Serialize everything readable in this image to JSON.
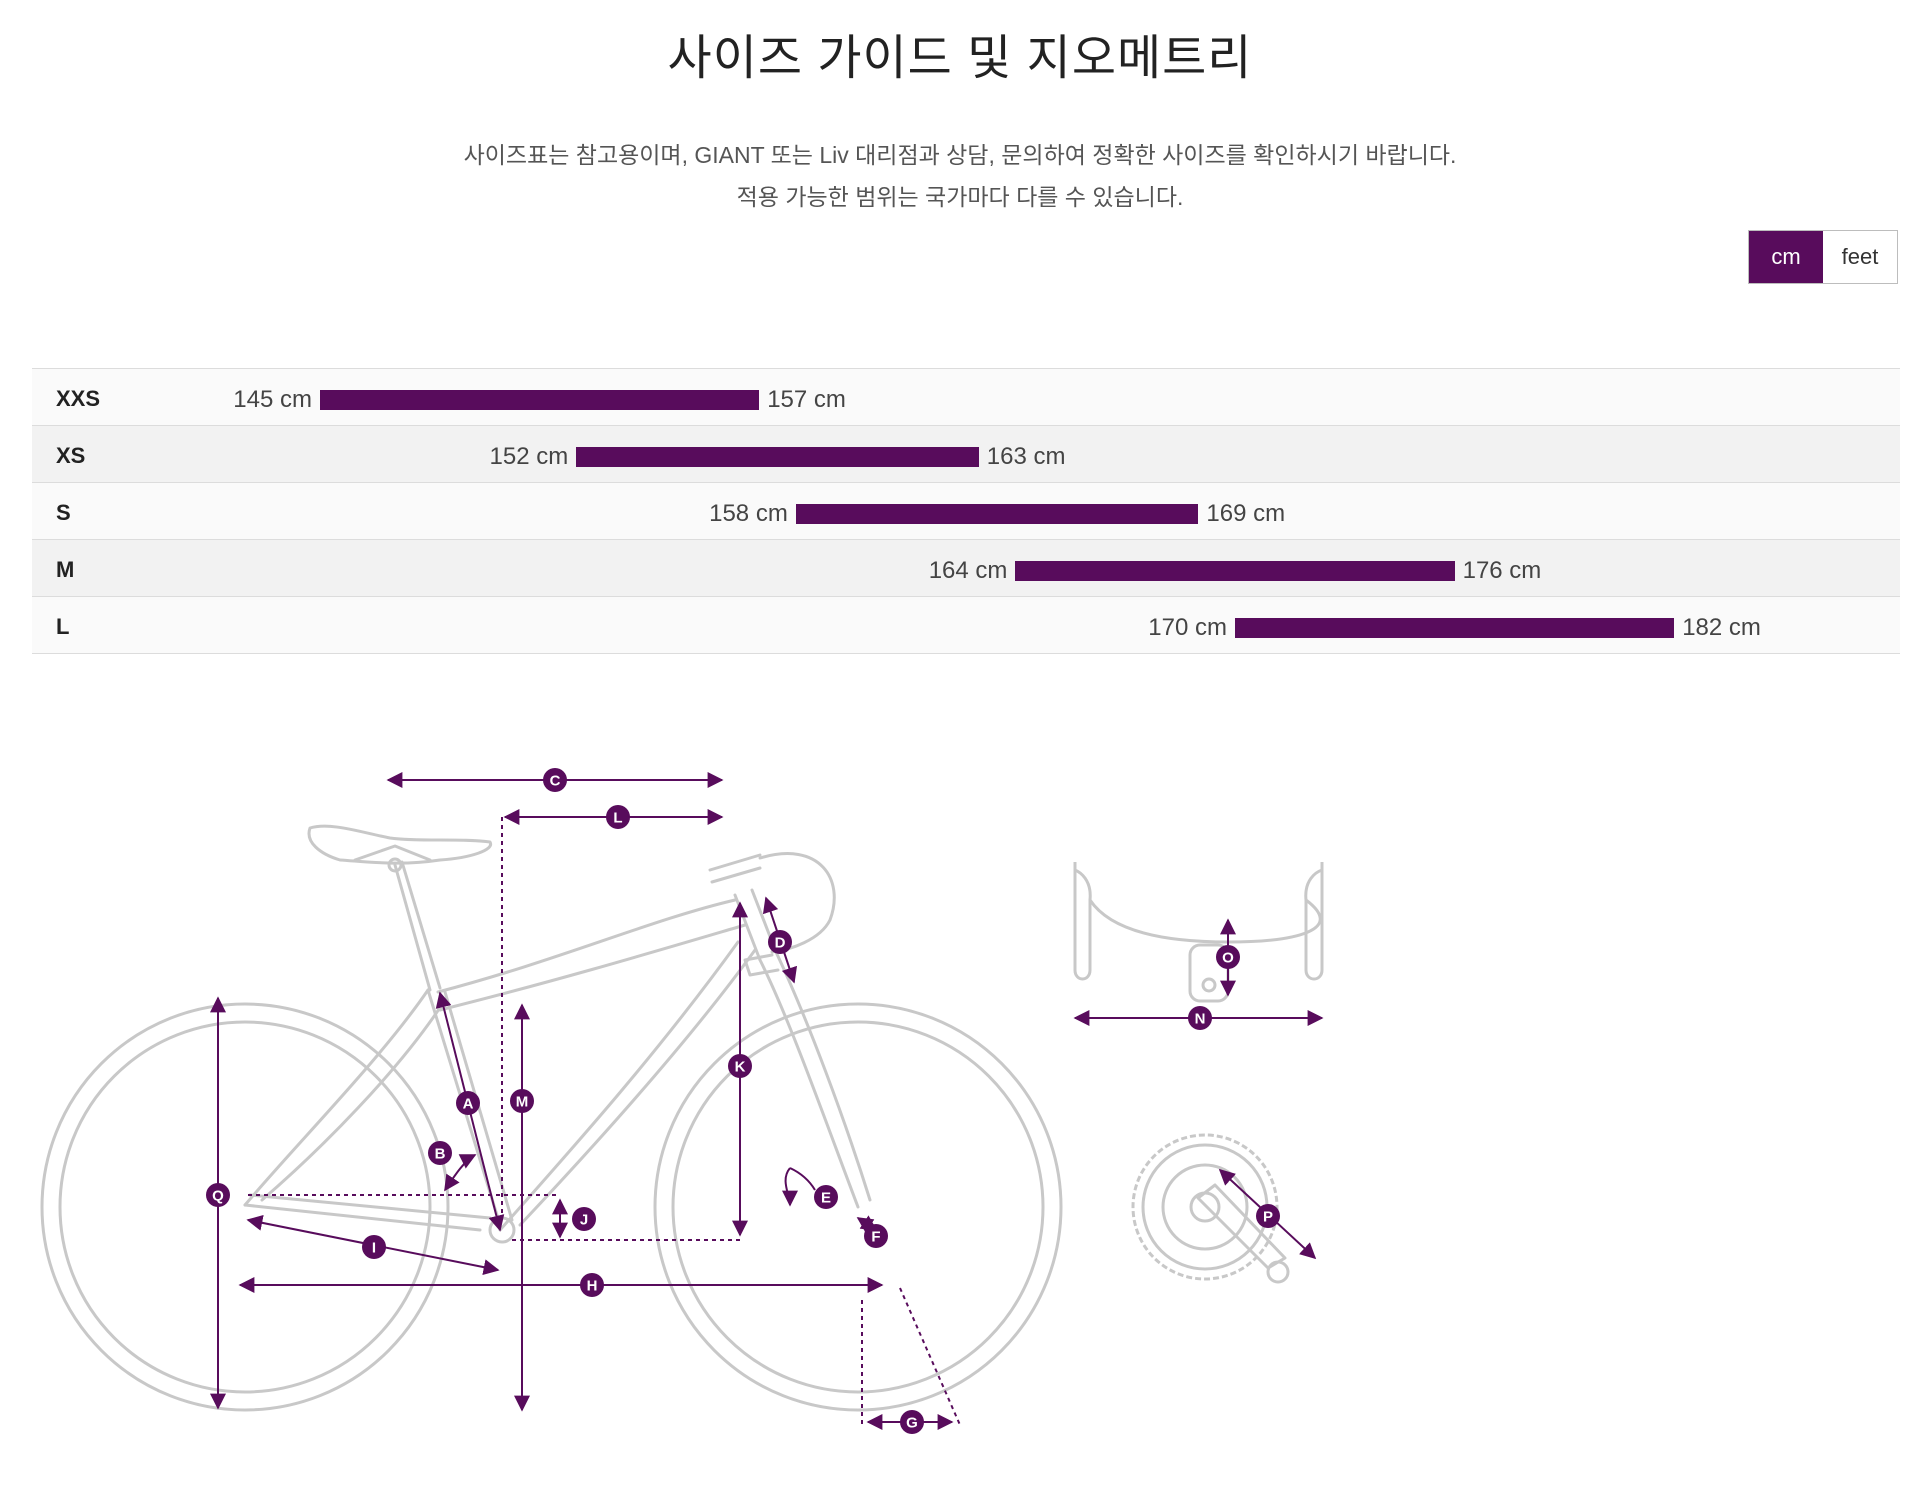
{
  "header": {
    "title": "사이즈 가이드 및 지오메트리",
    "description": [
      "사이즈표는 참고용이며, GIANT 또는 Liv 대리점과 상담, 문의하여 정확한 사이즈를 확인하시기 바랍니다.",
      "적용 가능한 범위는 국가마다 다를 수 있습니다."
    ]
  },
  "unit_toggle": {
    "options": [
      "cm",
      "feet"
    ],
    "selected": "cm"
  },
  "size_chart": {
    "unit": "cm",
    "rows": [
      {
        "size": "XXS",
        "min": 145,
        "max": 157,
        "min_label": "145 cm",
        "max_label": "157 cm"
      },
      {
        "size": "XS",
        "min": 152,
        "max": 163,
        "min_label": "152 cm",
        "max_label": "163 cm"
      },
      {
        "size": "S",
        "min": 158,
        "max": 169,
        "min_label": "158 cm",
        "max_label": "169 cm"
      },
      {
        "size": "M",
        "min": 164,
        "max": 176,
        "min_label": "164 cm",
        "max_label": "176 cm"
      },
      {
        "size": "L",
        "min": 170,
        "max": 182,
        "min_label": "170 cm",
        "max_label": "182 cm"
      }
    ]
  },
  "geometry_markers": [
    "A",
    "B",
    "C",
    "D",
    "E",
    "F",
    "G",
    "H",
    "I",
    "J",
    "K",
    "L",
    "M",
    "N",
    "O",
    "P",
    "Q"
  ],
  "colors": {
    "accent": "#580c5c",
    "bike_line": "#c8c8c8",
    "row_light": "#fafafa",
    "row_dark": "#f2f2f2"
  }
}
